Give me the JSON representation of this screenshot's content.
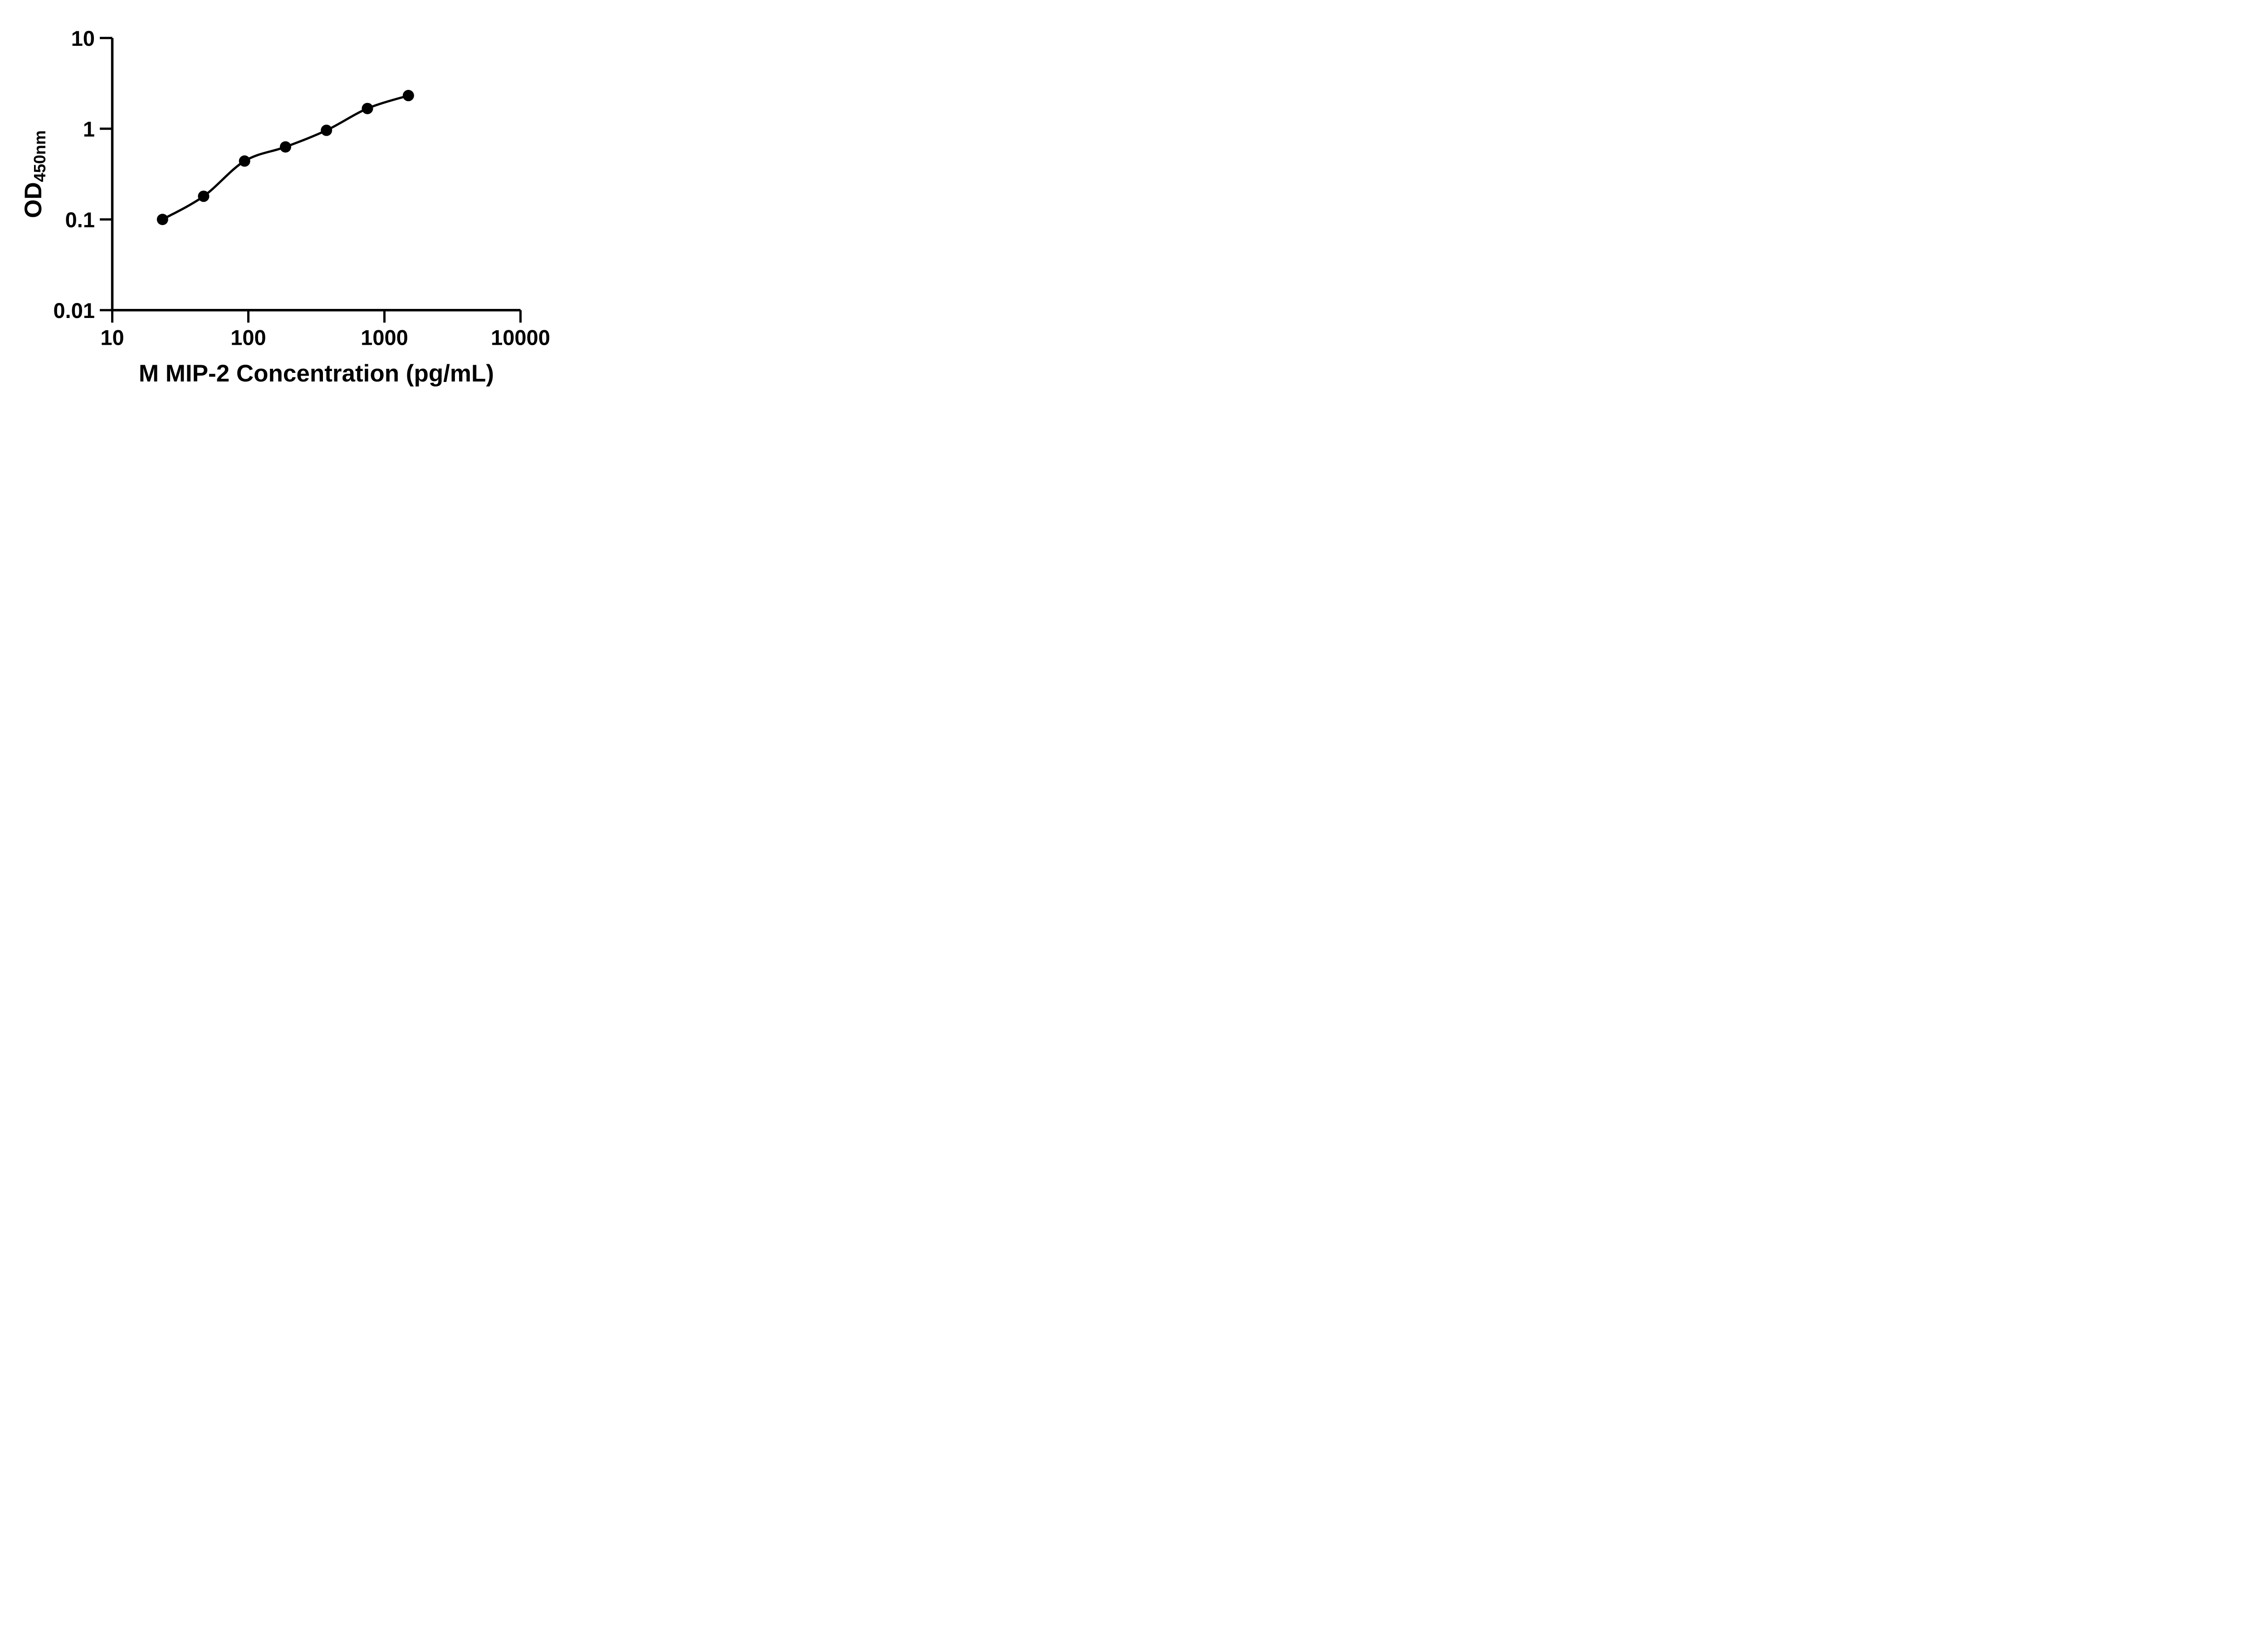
{
  "figure": {
    "background_color": "#ffffff",
    "ink_color": "#000000"
  },
  "chart_data": {
    "type": "scatter",
    "title": "",
    "xlabel": "M MIP-2 Concentration (pg/mL)",
    "ylabel_main": "OD",
    "ylabel_sub": "450nm",
    "x_scale": "log10",
    "y_scale": "log10",
    "xlim": [
      10,
      10000
    ],
    "ylim": [
      0.01,
      10
    ],
    "x_ticks": [
      10,
      100,
      1000,
      10000
    ],
    "x_tick_labels": [
      "10",
      "100",
      "1000",
      "10000"
    ],
    "y_ticks": [
      10,
      1,
      0.1,
      0.01
    ],
    "y_tick_labels": [
      "10",
      "1",
      "0.1",
      "0.01"
    ],
    "grid": false,
    "legend_position": "none",
    "series": [
      {
        "name": "standard-curve",
        "marker": "filled-circle",
        "marker_color": "#000000",
        "line": "smooth-fit",
        "line_color": "#000000",
        "x": [
          23.4,
          46.9,
          93.8,
          187.5,
          375,
          750,
          1500
        ],
        "y": [
          0.1,
          0.18,
          0.44,
          0.63,
          0.96,
          1.67,
          2.32
        ]
      }
    ]
  }
}
